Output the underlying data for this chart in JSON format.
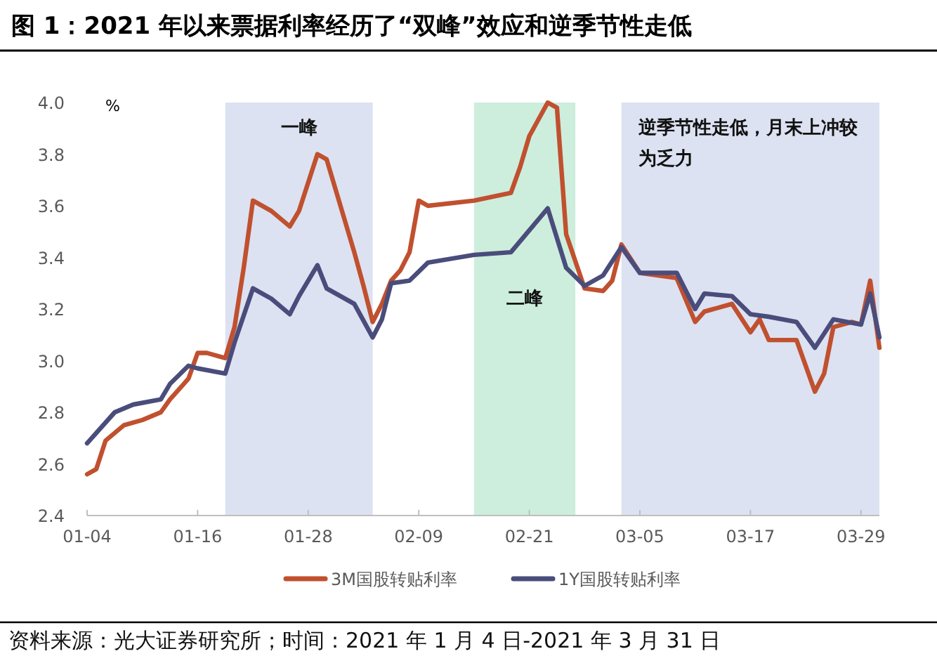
{
  "chart_data": {
    "type": "line",
    "title": "图 1：2021 年以来票据利率经历了“双峰”效应和逆季节性走低",
    "ylabel": "%",
    "annotations": [
      "资料来源：光大证券研究所；时间：2021 年 1 月 4 日-2021 年 3 月 31 日"
    ],
    "xlim": [
      "2021-01-04",
      "2021-03-31"
    ],
    "xticks": [
      {
        "value": "2021-01-04",
        "label": "01-04"
      },
      {
        "value": "2021-01-16",
        "label": "01-16"
      },
      {
        "value": "2021-01-28",
        "label": "01-28"
      },
      {
        "value": "2021-02-09",
        "label": "02-09"
      },
      {
        "value": "2021-02-21",
        "label": "02-21"
      },
      {
        "value": "2021-03-05",
        "label": "03-05"
      },
      {
        "value": "2021-03-17",
        "label": "03-17"
      },
      {
        "value": "2021-03-29",
        "label": "03-29"
      }
    ],
    "ylim": [
      2.4,
      4.0
    ],
    "yticks": [
      2.4,
      2.6,
      2.8,
      {
        "value": 3,
        "label": "3.0"
      },
      3.2,
      3.4,
      3.6,
      3.8,
      {
        "value": 4,
        "label": "4.0"
      }
    ],
    "bands": [
      {
        "axis": "x",
        "from": "2021-01-19",
        "to": "2021-02-04",
        "label": "一峰",
        "color": "#dce2f1"
      },
      {
        "axis": "x",
        "from": "2021-02-15",
        "to": "2021-02-26",
        "label": "二峰",
        "color": "#cdeedc"
      },
      {
        "axis": "x",
        "from": "2021-03-03",
        "to": "2021-03-31",
        "label": "逆季节性走低，月末上冲较为乏力",
        "color": "#dce2f1"
      }
    ],
    "legend": "bottom",
    "grid": false,
    "series": [
      {
        "name": "3M国股转贴利率",
        "color": "#c0502f",
        "x": [
          "2021-01-04",
          "2021-01-05",
          "2021-01-06",
          "2021-01-08",
          "2021-01-10",
          "2021-01-12",
          "2021-01-13",
          "2021-01-15",
          "2021-01-16",
          "2021-01-17",
          "2021-01-19",
          "2021-01-20",
          "2021-01-21",
          "2021-01-22",
          "2021-01-24",
          "2021-01-26",
          "2021-01-27",
          "2021-01-29",
          "2021-01-30",
          "2021-02-02",
          "2021-02-03",
          "2021-02-04",
          "2021-02-05",
          "2021-02-06",
          "2021-02-07",
          "2021-02-08",
          "2021-02-09",
          "2021-02-10",
          "2021-02-15",
          "2021-02-19",
          "2021-02-20",
          "2021-02-21",
          "2021-02-23",
          "2021-02-24",
          "2021-02-25",
          "2021-02-27",
          "2021-03-01",
          "2021-03-02",
          "2021-03-03",
          "2021-03-05",
          "2021-03-09",
          "2021-03-11",
          "2021-03-12",
          "2021-03-15",
          "2021-03-17",
          "2021-03-18",
          "2021-03-19",
          "2021-03-22",
          "2021-03-24",
          "2021-03-25",
          "2021-03-26",
          "2021-03-28",
          "2021-03-29",
          "2021-03-30",
          "2021-03-31"
        ],
        "values": [
          2.56,
          2.58,
          2.69,
          2.75,
          2.77,
          2.8,
          2.85,
          2.93,
          3.03,
          3.03,
          3.01,
          3.13,
          3.36,
          3.62,
          3.58,
          3.52,
          3.58,
          3.8,
          3.78,
          3.42,
          3.29,
          3.15,
          3.22,
          3.31,
          3.35,
          3.42,
          3.62,
          3.6,
          3.62,
          3.65,
          3.75,
          3.87,
          4.0,
          3.98,
          3.49,
          3.28,
          3.27,
          3.31,
          3.45,
          3.34,
          3.32,
          3.15,
          3.19,
          3.22,
          3.11,
          3.16,
          3.08,
          3.08,
          2.88,
          2.95,
          3.13,
          3.15,
          3.14,
          3.31,
          3.05
        ]
      },
      {
        "name": "1Y国股转贴利率",
        "color": "#4a4d7b",
        "x": [
          "2021-01-04",
          "2021-01-07",
          "2021-01-09",
          "2021-01-12",
          "2021-01-13",
          "2021-01-15",
          "2021-01-16",
          "2021-01-19",
          "2021-01-20",
          "2021-01-22",
          "2021-01-24",
          "2021-01-26",
          "2021-01-27",
          "2021-01-29",
          "2021-01-30",
          "2021-02-02",
          "2021-02-04",
          "2021-02-05",
          "2021-02-06",
          "2021-02-08",
          "2021-02-10",
          "2021-02-15",
          "2021-02-19",
          "2021-02-23",
          "2021-02-25",
          "2021-02-27",
          "2021-03-01",
          "2021-03-03",
          "2021-03-05",
          "2021-03-09",
          "2021-03-11",
          "2021-03-12",
          "2021-03-15",
          "2021-03-17",
          "2021-03-19",
          "2021-03-22",
          "2021-03-24",
          "2021-03-26",
          "2021-03-29",
          "2021-03-30",
          "2021-03-31"
        ],
        "values": [
          2.68,
          2.8,
          2.83,
          2.85,
          2.91,
          2.98,
          2.97,
          2.95,
          3.07,
          3.28,
          3.24,
          3.18,
          3.25,
          3.37,
          3.28,
          3.22,
          3.09,
          3.16,
          3.3,
          3.31,
          3.38,
          3.41,
          3.42,
          3.59,
          3.36,
          3.29,
          3.33,
          3.44,
          3.34,
          3.34,
          3.2,
          3.26,
          3.25,
          3.18,
          3.17,
          3.15,
          3.05,
          3.16,
          3.14,
          3.26,
          3.09
        ]
      }
    ]
  }
}
